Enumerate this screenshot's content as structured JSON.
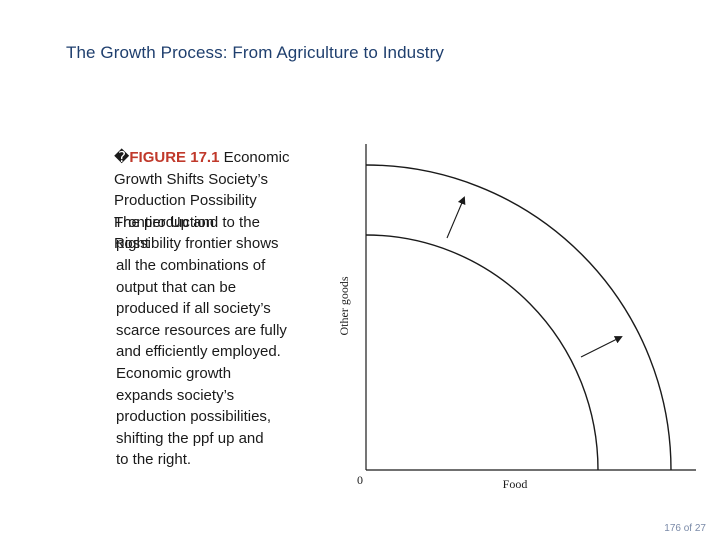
{
  "slide": {
    "title": "The Growth Process: From Agriculture to Industry"
  },
  "caption": {
    "marker": "�",
    "figure_label": "FIGURE 17.1",
    "line1_rest": "  Economic",
    "line2": "Growth Shifts Society’s",
    "line3": "Production Possibility",
    "overlap_a": "Frontier Up and to the",
    "overlap_b": "The production",
    "overlap_c": "Right",
    "overlap_d": "possibility frontier shows",
    "body_lines": [
      "all the combinations of",
      "output that can be",
      "produced if all society’s",
      "scarce resources are fully",
      "and efficiently employed.",
      "Economic growth",
      "expands society’s",
      "production possibilities,",
      "shifting the ppf up and",
      "to the right."
    ]
  },
  "diagram": {
    "y_axis_label": "Other goods",
    "x_axis_label": "Food",
    "origin_label": "0"
  },
  "footer": {
    "page_number": "176 of 27"
  }
}
